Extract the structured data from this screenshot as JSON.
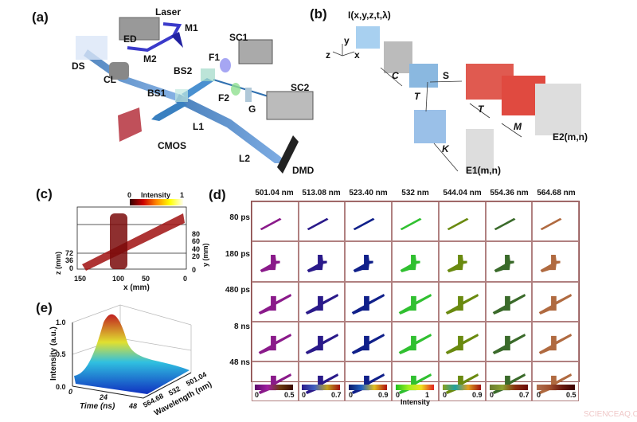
{
  "panel_a": {
    "label": "(a)",
    "components": {
      "laser": "Laser",
      "m1": "M1",
      "m2": "M2",
      "ed": "ED",
      "ds": "DS",
      "cl": "CL",
      "sc1": "SC1",
      "sc2": "SC2",
      "f1": "F1",
      "f2": "F2",
      "bs1": "BS1",
      "bs2": "BS2",
      "g": "G",
      "l1": "L1",
      "l2": "L2",
      "cmos": "CMOS",
      "dmd": "DMD"
    }
  },
  "panel_b": {
    "label": "(b)",
    "input": "I(x,y,z,t,λ)",
    "axes": {
      "x": "x",
      "y": "y",
      "z": "z"
    },
    "operators": {
      "c": "C",
      "s": "S",
      "t1": "T",
      "t2": "T",
      "m": "M",
      "k": "K"
    },
    "e1": "E1(m,n)",
    "e2": "E2(m,n)"
  },
  "panel_c": {
    "label": "(c)",
    "colorbar": {
      "title": "Intensity",
      "min": "0",
      "max": "1"
    },
    "x_label": "x (mm)",
    "x_ticks": [
      "150",
      "100",
      "50",
      "0"
    ],
    "y_label": "y (mm)",
    "y_ticks": [
      "80",
      "60",
      "40",
      "20",
      "0"
    ],
    "z_label": "z (mm)",
    "z_ticks": [
      "72",
      "36",
      "0"
    ]
  },
  "panel_d": {
    "label": "(d)",
    "columns": [
      {
        "label": "501.04 nm",
        "color": "#8a1a8a",
        "cb": [
          "#5a0a6a",
          "#a020a0",
          "#6a3a10",
          "#3a0a00"
        ],
        "min": "0",
        "max": "0.5"
      },
      {
        "label": "513.08 nm",
        "color": "#2a1a8a",
        "cb": [
          "#2a1a8a",
          "#4060c0",
          "#c0a020",
          "#a01010"
        ],
        "min": "0",
        "max": "0.7"
      },
      {
        "label": "523.40 nm",
        "color": "#10208a",
        "cb": [
          "#0a1a6a",
          "#2060c0",
          "#e0c020",
          "#b01010"
        ],
        "min": "0",
        "max": "0.9"
      },
      {
        "label": "532 nm",
        "color": "#30c030",
        "cb": [
          "#20c020",
          "#a0f020",
          "#f0e020",
          "#e02020"
        ],
        "min": "0",
        "max": "1"
      },
      {
        "label": "544.04 nm",
        "color": "#6a8a10",
        "cb": [
          "#8aa020",
          "#20a0a0",
          "#e0a020",
          "#a01010"
        ],
        "min": "0",
        "max": "0.9"
      },
      {
        "label": "554.36 nm",
        "color": "#3a6a2a",
        "cb": [
          "#6a7a30",
          "#8aa030",
          "#8a3010",
          "#6a0a0a"
        ],
        "min": "0",
        "max": "0.7"
      },
      {
        "label": "564.68 nm",
        "color": "#b06a40",
        "cb": [
          "#b07050",
          "#a05030",
          "#6a1a10",
          "#3a0000"
        ],
        "min": "0",
        "max": "0.5"
      }
    ],
    "rows": [
      "80 ps",
      "180 ps",
      "480 ps",
      "8 ns",
      "48 ns"
    ],
    "colorbar_title": "Intensity"
  },
  "panel_e": {
    "label": "(e)",
    "z_label": "Intensity (a.u.)",
    "z_ticks": [
      "1.0",
      "0.5",
      "0.0"
    ],
    "time_label": "Time (ns)",
    "time_ticks": [
      "0",
      "24",
      "48"
    ],
    "wl_label": "Wavelength (nm)",
    "wl_ticks": [
      "564.68",
      "532",
      "501.04"
    ]
  },
  "watermark": "SCIENCEAQ.COM"
}
